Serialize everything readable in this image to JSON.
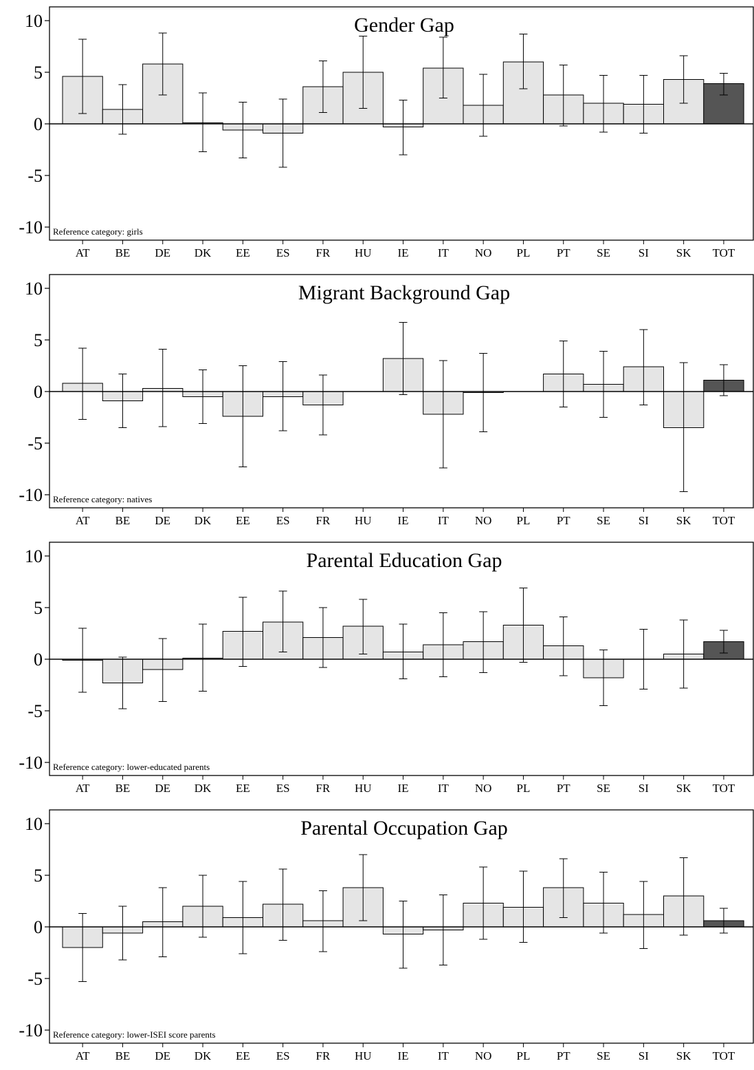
{
  "chart_data": [
    {
      "type": "bar",
      "title": "Gender Gap",
      "note": "Reference category: girls",
      "categories": [
        "AT",
        "BE",
        "DE",
        "DK",
        "EE",
        "ES",
        "FR",
        "HU",
        "IE",
        "IT",
        "NO",
        "PL",
        "PT",
        "SE",
        "SI",
        "SK",
        "TOT"
      ],
      "values": [
        4.6,
        1.4,
        5.8,
        0.1,
        -0.6,
        -0.9,
        3.6,
        5.0,
        -0.3,
        5.4,
        1.8,
        6.0,
        2.8,
        2.0,
        1.9,
        4.3,
        3.9
      ],
      "ci_low": [
        1.0,
        -1.0,
        2.8,
        -2.7,
        -3.3,
        -4.2,
        1.1,
        1.5,
        -3.0,
        2.5,
        -1.2,
        3.4,
        -0.2,
        -0.8,
        -0.9,
        2.0,
        2.8
      ],
      "ci_high": [
        8.2,
        3.8,
        8.8,
        3.0,
        2.1,
        2.4,
        6.1,
        8.5,
        2.3,
        8.4,
        4.8,
        8.7,
        5.7,
        4.7,
        4.7,
        6.6,
        4.9
      ],
      "ylim": [
        -10,
        10
      ],
      "yticks": [
        10,
        5,
        0,
        -5,
        -10
      ],
      "ytick_labels": [
        "10",
        "5",
        "0",
        "-5",
        "-10"
      ],
      "highlight_category": "TOT",
      "colors": {
        "bar": "#e5e5e5",
        "highlight": "#555555"
      }
    },
    {
      "type": "bar",
      "title": "Migrant Background Gap",
      "note": "Reference category: natives",
      "categories": [
        "AT",
        "BE",
        "DE",
        "DK",
        "EE",
        "ES",
        "FR",
        "HU",
        "IE",
        "IT",
        "NO",
        "PL",
        "PT",
        "SE",
        "SI",
        "SK",
        "TOT"
      ],
      "values": [
        0.8,
        -0.9,
        0.3,
        -0.5,
        -2.4,
        -0.5,
        -1.3,
        0.0,
        3.2,
        -2.2,
        -0.1,
        0.0,
        1.7,
        0.7,
        2.4,
        -3.5,
        1.1
      ],
      "ci_low": [
        -2.7,
        -3.5,
        -3.4,
        -3.1,
        -7.3,
        -3.8,
        -4.2,
        0.0,
        -0.3,
        -7.4,
        -3.9,
        0.0,
        -1.5,
        -2.5,
        -1.3,
        -9.7,
        -0.4
      ],
      "ci_high": [
        4.2,
        1.7,
        4.1,
        2.1,
        2.5,
        2.9,
        1.6,
        0.0,
        6.7,
        3.0,
        3.7,
        0.0,
        4.9,
        3.9,
        6.0,
        2.8,
        2.6
      ],
      "ylim": [
        -10,
        10
      ],
      "yticks": [
        10,
        5,
        0,
        -5,
        -10
      ],
      "ytick_labels": [
        "10",
        "5",
        "0",
        "-5",
        "-10"
      ],
      "highlight_category": "TOT",
      "colors": {
        "bar": "#e5e5e5",
        "highlight": "#555555"
      }
    },
    {
      "type": "bar",
      "title": "Parental Education Gap",
      "note": "Reference category: lower-educated parents",
      "categories": [
        "AT",
        "BE",
        "DE",
        "DK",
        "EE",
        "ES",
        "FR",
        "HU",
        "IE",
        "IT",
        "NO",
        "PL",
        "PT",
        "SE",
        "SI",
        "SK",
        "TOT"
      ],
      "values": [
        -0.1,
        -2.3,
        -1.0,
        0.1,
        2.7,
        3.6,
        2.1,
        3.2,
        0.7,
        1.4,
        1.7,
        3.3,
        1.3,
        -1.8,
        0.0,
        0.5,
        1.7
      ],
      "ci_low": [
        -3.2,
        -4.8,
        -4.1,
        -3.1,
        -0.7,
        0.7,
        -0.8,
        0.5,
        -1.9,
        -1.7,
        -1.3,
        -0.3,
        -1.6,
        -4.5,
        -2.9,
        -2.8,
        0.6
      ],
      "ci_high": [
        3.0,
        0.2,
        2.0,
        3.4,
        6.0,
        6.6,
        5.0,
        5.8,
        3.4,
        4.5,
        4.6,
        6.9,
        4.1,
        0.9,
        2.9,
        3.8,
        2.8
      ],
      "ylim": [
        -10,
        10
      ],
      "yticks": [
        10,
        5,
        0,
        -5,
        -10
      ],
      "ytick_labels": [
        "10",
        "5",
        "0",
        "-5",
        "-10"
      ],
      "highlight_category": "TOT",
      "colors": {
        "bar": "#e5e5e5",
        "highlight": "#555555"
      }
    },
    {
      "type": "bar",
      "title": "Parental Occupation Gap",
      "note": "Reference category: lower-ISEI score parents",
      "categories": [
        "AT",
        "BE",
        "DE",
        "DK",
        "EE",
        "ES",
        "FR",
        "HU",
        "IE",
        "IT",
        "NO",
        "PL",
        "PT",
        "SE",
        "SI",
        "SK",
        "TOT"
      ],
      "values": [
        -2.0,
        -0.6,
        0.5,
        2.0,
        0.9,
        2.2,
        0.6,
        3.8,
        -0.7,
        -0.3,
        2.3,
        1.9,
        3.8,
        2.3,
        1.2,
        3.0,
        0.6
      ],
      "ci_low": [
        -5.3,
        -3.2,
        -2.9,
        -1.0,
        -2.6,
        -1.3,
        -2.4,
        0.6,
        -4.0,
        -3.7,
        -1.2,
        -1.5,
        0.9,
        -0.6,
        -2.1,
        -0.8,
        -0.6
      ],
      "ci_high": [
        1.3,
        2.0,
        3.8,
        5.0,
        4.4,
        5.6,
        3.5,
        7.0,
        2.5,
        3.1,
        5.8,
        5.4,
        6.6,
        5.3,
        4.4,
        6.7,
        1.8
      ],
      "ylim": [
        -10,
        10
      ],
      "yticks": [
        10,
        5,
        0,
        -5,
        -10
      ],
      "ytick_labels": [
        "10",
        "5",
        "0",
        "-5",
        "-10"
      ],
      "highlight_category": "TOT",
      "colors": {
        "bar": "#e5e5e5",
        "highlight": "#555555"
      }
    }
  ]
}
